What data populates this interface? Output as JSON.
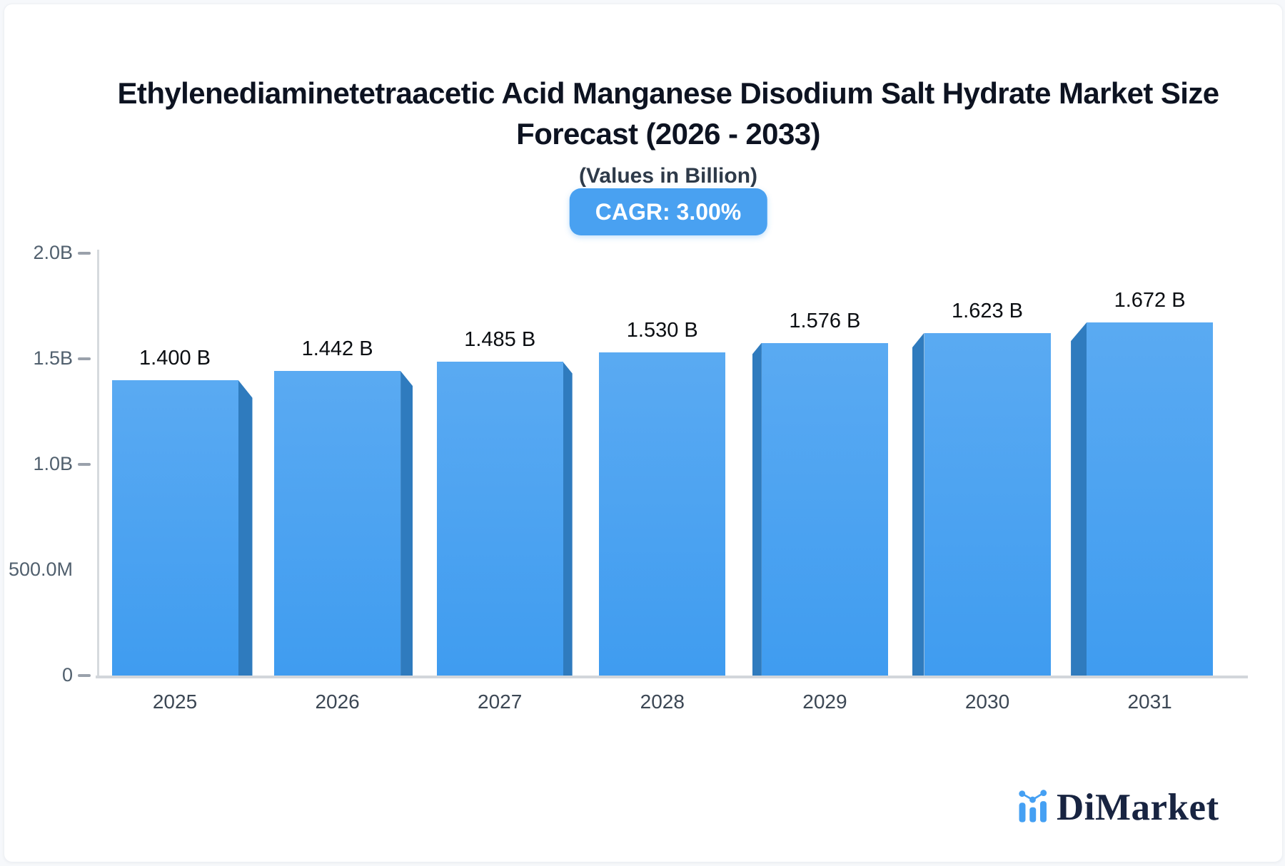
{
  "header": {
    "title_line1": "Ethylenediaminetetraacetic Acid Manganese Disodium Salt Hydrate Market Size",
    "title_line2": "Forecast (2026 - 2033)",
    "subtitle": "(Values in Billion)",
    "cagr_badge": "CAGR: 3.00%",
    "badge_color": "#49a1f1"
  },
  "chart_data": {
    "type": "bar",
    "title": "Ethylenediaminetetraacetic Acid Manganese Disodium Salt Hydrate Market Size Forecast (2026 - 2033)",
    "subtitle": "(Values in Billion)",
    "unit": "Billion USD",
    "cagr_percent": 3.0,
    "categories": [
      "2025",
      "2026",
      "2027",
      "2028",
      "2029",
      "2030",
      "2031"
    ],
    "values": [
      1.4,
      1.442,
      1.485,
      1.53,
      1.576,
      1.623,
      1.672
    ],
    "value_labels": [
      "1.400 B",
      "1.442 B",
      "1.485 B",
      "1.530 B",
      "1.576 B",
      "1.623 B",
      "1.672 B"
    ],
    "xlabel": "",
    "ylabel": "",
    "ylim": [
      0,
      2.0
    ],
    "y_ticks": [
      {
        "label": "2.0B",
        "value": 2.0,
        "dash": true
      },
      {
        "label": "1.5B",
        "value": 1.5,
        "dash": true
      },
      {
        "label": "1.0B",
        "value": 1.0,
        "dash": true
      },
      {
        "label": "500.0M",
        "value": 0.5,
        "dash": false
      },
      {
        "label": "0",
        "value": 0.0,
        "dash": true
      }
    ],
    "grid": false,
    "legend": false,
    "bar_color_top": "#5aaaf2",
    "bar_color_bottom": "#3f9cf0",
    "bar_side_color": "#2f7bbe",
    "effect": "3d-perspective-center"
  },
  "logo": {
    "text": "DiMarket",
    "icon": "bar-chart-logo-icon",
    "icon_color": "#45a0f3",
    "text_color": "#182441"
  }
}
